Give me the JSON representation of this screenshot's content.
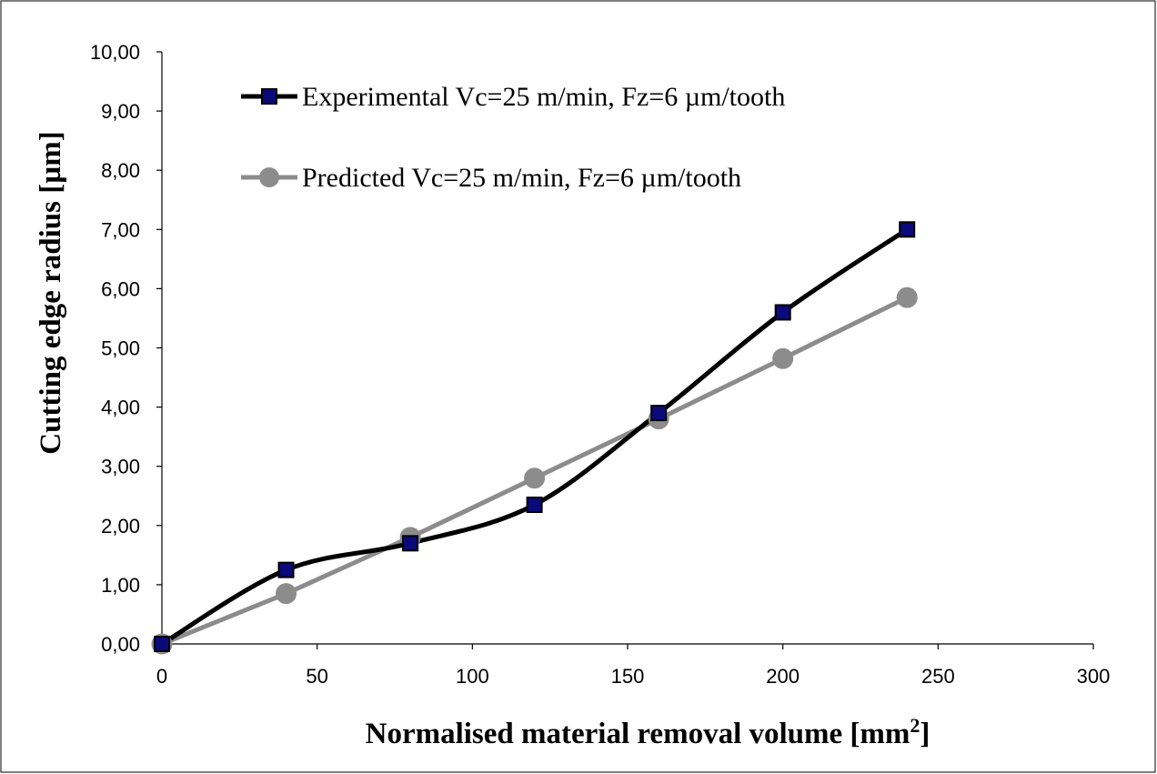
{
  "chart_data": {
    "type": "line",
    "title": "",
    "xlabel": "Normalised material removal volume [mm",
    "xlabel_sup": "2",
    "xlabel_end": "]",
    "ylabel": "Cutting edge radius [µm]",
    "xlim": [
      0,
      300
    ],
    "ylim": [
      0,
      10
    ],
    "x_ticks": [
      "0",
      "50",
      "100",
      "150",
      "200",
      "250",
      "300"
    ],
    "y_ticks": [
      "0,00",
      "1,00",
      "2,00",
      "3,00",
      "4,00",
      "5,00",
      "6,00",
      "7,00",
      "8,00",
      "9,00",
      "10,00"
    ],
    "grid": false,
    "legend_position": "top-left",
    "series": [
      {
        "name": "Experimental Vc=25 m/min, Fz=6 µm/tooth",
        "color": "#000000",
        "marker": "square",
        "marker_color": "#0a0a7a",
        "smooth": true,
        "x": [
          0,
          40,
          80,
          120,
          160,
          200,
          240
        ],
        "y": [
          0.0,
          1.25,
          1.7,
          2.35,
          3.9,
          5.6,
          7.0
        ]
      },
      {
        "name": "Predicted Vc=25 m/min, Fz=6 µm/tooth",
        "color": "#8c8c8c",
        "marker": "circle",
        "marker_color": "#8c8c8c",
        "smooth": false,
        "x": [
          0,
          40,
          80,
          120,
          160,
          200,
          240
        ],
        "y": [
          0.0,
          0.85,
          1.8,
          2.8,
          3.8,
          4.82,
          5.85
        ]
      }
    ]
  }
}
